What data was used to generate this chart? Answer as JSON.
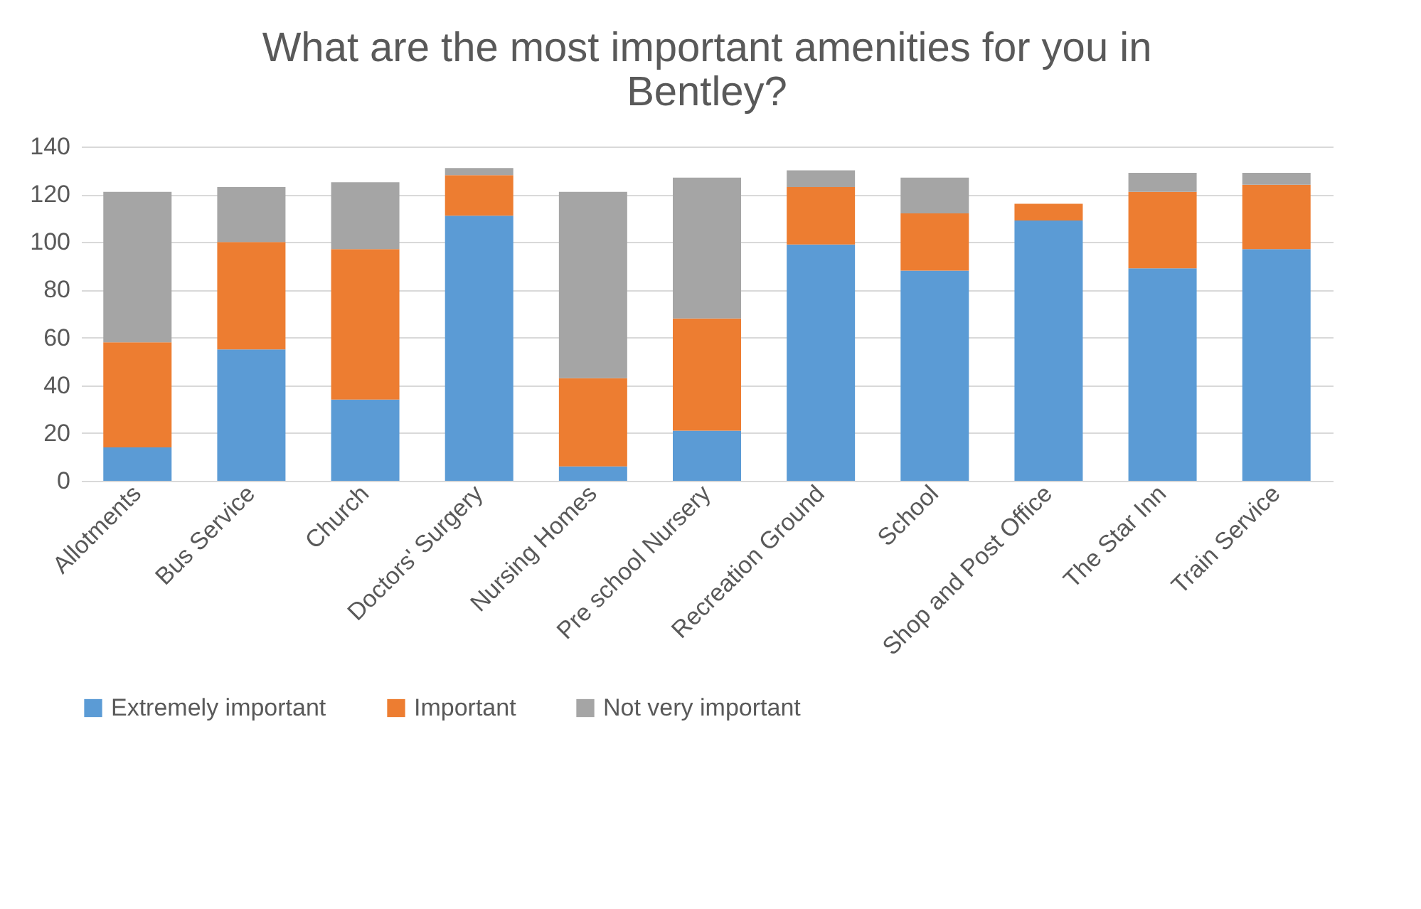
{
  "chart_data": {
    "type": "bar",
    "stacked": true,
    "title": "What are the most important amenities for you in Bentley?",
    "categories": [
      "Allotments",
      "Bus Service",
      "Church",
      "Doctors' Surgery",
      "Nursing Homes",
      "Pre school Nursery",
      "Recreation Ground",
      "School",
      "Shop and Post Office",
      "The Star Inn",
      "Train Service"
    ],
    "series": [
      {
        "name": "Extremely important",
        "color": "#5b9bd5",
        "values": [
          14,
          55,
          34,
          111,
          6,
          21,
          99,
          88,
          109,
          89,
          97
        ]
      },
      {
        "name": "Important",
        "color": "#ed7d31",
        "values": [
          44,
          45,
          63,
          17,
          37,
          47,
          24,
          24,
          7,
          32,
          27
        ]
      },
      {
        "name": "Not very important",
        "color": "#a5a5a5",
        "values": [
          63,
          23,
          28,
          3,
          78,
          59,
          7,
          15,
          0,
          8,
          5
        ]
      }
    ],
    "ylim": [
      0,
      140
    ],
    "yticks": [
      0,
      20,
      40,
      60,
      80,
      100,
      120,
      140
    ],
    "grid": "y",
    "legend": "bottom"
  }
}
